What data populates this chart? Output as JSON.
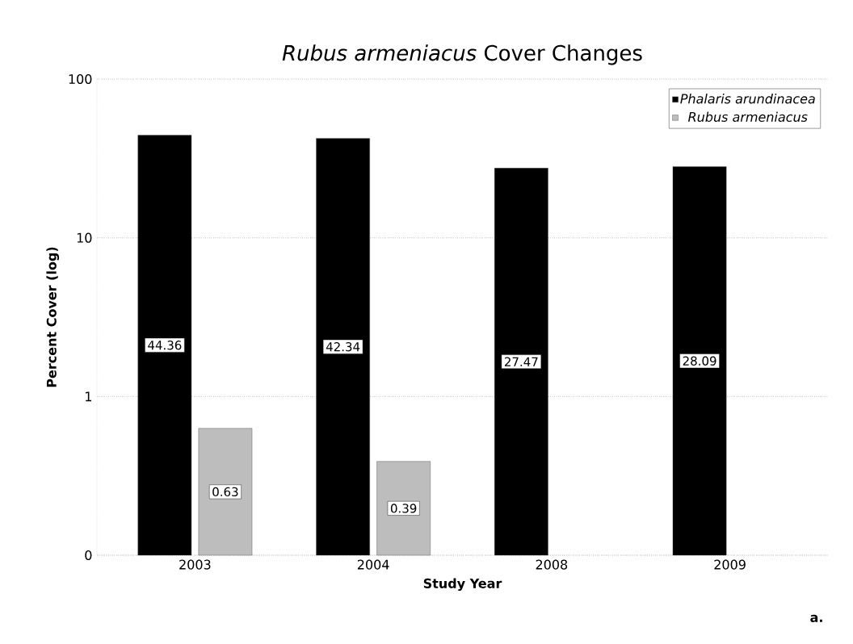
{
  "chart_data": {
    "type": "bar",
    "title": "*Rubus armeniacus* Cover Changes",
    "xlabel": "Study Year",
    "ylabel": "Percent Cover (log)",
    "categories": [
      "2003",
      "2004",
      "2008",
      "2009"
    ],
    "series": [
      {
        "name": "Phalaris arundinacea",
        "color": "#000000",
        "values": [
          44.36,
          42.34,
          27.47,
          28.09
        ]
      },
      {
        "name": "Rubus armeniacus",
        "color": "#bdbdbd",
        "values": [
          0.63,
          0.39,
          null,
          null
        ]
      }
    ],
    "log": "y",
    "ylim": [
      0.1,
      100
    ],
    "yticks": [
      {
        "value": 0.1,
        "label": "0"
      },
      1,
      10,
      100
    ],
    "grid": "y",
    "legend": "top right",
    "data_labels": true,
    "annotations": [
      "a."
    ]
  }
}
